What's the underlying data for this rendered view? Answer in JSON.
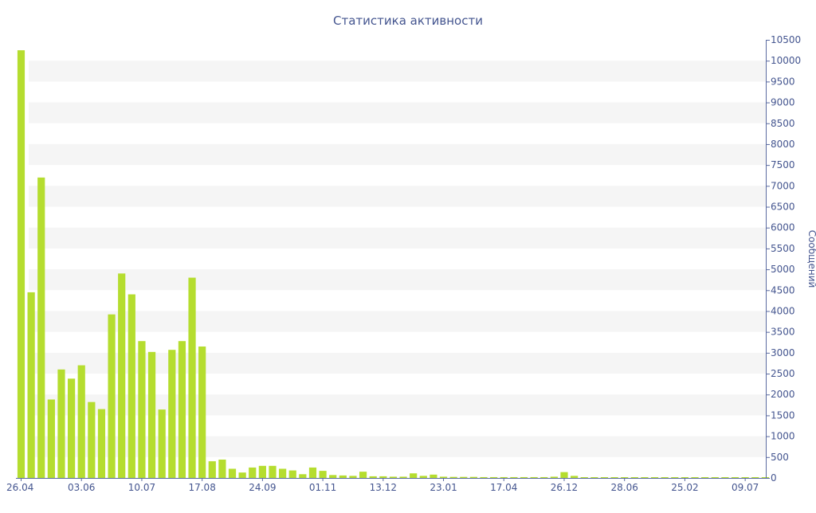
{
  "chart_data": {
    "type": "bar",
    "title": "Статистика активности",
    "ylabel": "Сообщений",
    "xlabel": "",
    "ylim": [
      0,
      10500
    ],
    "y_ticks": [
      0,
      500,
      1000,
      1500,
      2000,
      2500,
      3000,
      3500,
      4000,
      4500,
      5000,
      5500,
      6000,
      6500,
      7000,
      7500,
      8000,
      8500,
      9000,
      9500,
      10000,
      10500
    ],
    "y_axis_position": "right",
    "grid": "alternating horizontal bands",
    "x_tick_labels": [
      {
        "label": "26.04",
        "index": 0
      },
      {
        "label": "03.06",
        "index": 6
      },
      {
        "label": "10.07",
        "index": 12
      },
      {
        "label": "17.08",
        "index": 18
      },
      {
        "label": "24.09",
        "index": 24
      },
      {
        "label": "01.11",
        "index": 30
      },
      {
        "label": "13.12",
        "index": 36
      },
      {
        "label": "23.01",
        "index": 42
      },
      {
        "label": "17.04",
        "index": 48
      },
      {
        "label": "26.12",
        "index": 54
      },
      {
        "label": "28.06",
        "index": 60
      },
      {
        "label": "25.02",
        "index": 66
      },
      {
        "label": "09.07",
        "index": 72
      }
    ],
    "series": [
      {
        "color": "#b5dd2f",
        "values": [
          10250,
          4450,
          7200,
          1880,
          2600,
          2380,
          2700,
          1820,
          1650,
          3920,
          4900,
          4400,
          3280,
          3020,
          1640,
          3070,
          3280,
          4800,
          3150,
          400,
          440,
          220,
          130,
          250,
          290,
          290,
          220,
          180,
          90,
          250,
          170,
          70,
          60,
          50,
          150,
          40,
          40,
          30,
          30,
          110,
          50,
          80,
          30,
          25,
          25,
          25,
          20,
          20,
          20,
          20,
          20,
          20,
          20,
          30,
          140,
          50,
          15,
          15,
          15,
          15,
          15,
          10,
          10,
          10,
          10,
          10,
          10,
          10,
          10,
          10,
          10,
          10,
          10,
          10,
          10
        ]
      }
    ]
  },
  "colors": {
    "bar": "#b5dd2f",
    "axis_text": "#44558f",
    "band": "#f5f5f5",
    "axis_line": "#5a6aa0"
  }
}
